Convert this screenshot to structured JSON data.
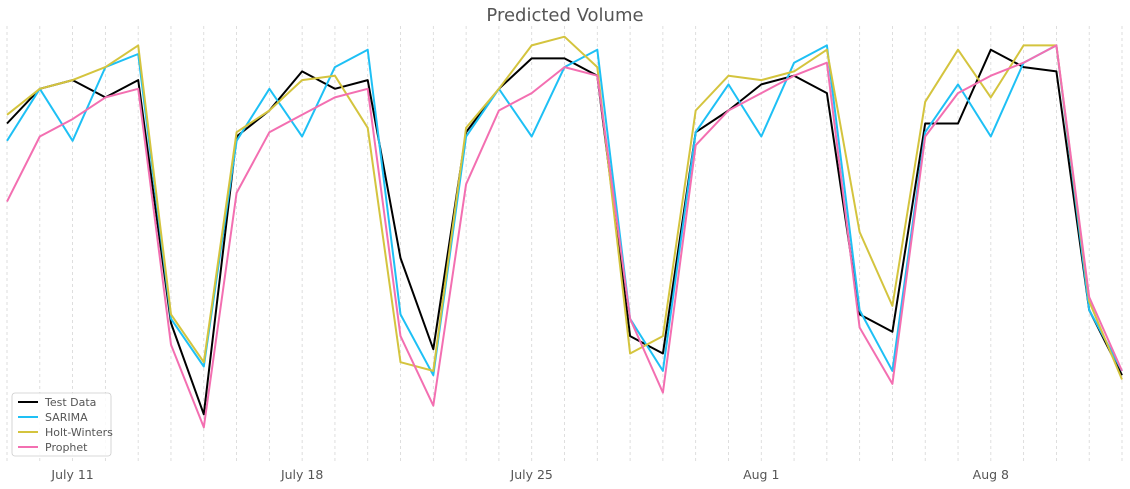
{
  "chart_data": {
    "type": "line",
    "title": "Predicted Volume",
    "xlabel": "",
    "ylabel": "",
    "x": [
      "2021-07-09",
      "2021-07-10",
      "2021-07-11",
      "2021-07-12",
      "2021-07-13",
      "2021-07-14",
      "2021-07-15",
      "2021-07-16",
      "2021-07-17",
      "2021-07-18",
      "2021-07-19",
      "2021-07-20",
      "2021-07-21",
      "2021-07-22",
      "2021-07-23",
      "2021-07-24",
      "2021-07-25",
      "2021-07-26",
      "2021-07-27",
      "2021-07-28",
      "2021-07-29",
      "2021-07-30",
      "2021-07-31",
      "2021-08-01",
      "2021-08-02",
      "2021-08-03",
      "2021-08-04",
      "2021-08-05",
      "2021-08-06",
      "2021-08-07",
      "2021-08-08",
      "2021-08-09",
      "2021-08-10",
      "2021-08-11",
      "2021-08-12"
    ],
    "x_ticks": [
      {
        "date": "2021-07-11",
        "label": "July 11"
      },
      {
        "date": "2021-07-18",
        "label": "July 18"
      },
      {
        "date": "2021-07-25",
        "label": "July 25"
      },
      {
        "date": "2021-08-01",
        "label": "Aug 1"
      },
      {
        "date": "2021-08-08",
        "label": "Aug 8"
      }
    ],
    "ylim": [
      0,
      100
    ],
    "y_ticks_shown": false,
    "grid": "vertical-dashed",
    "legend_position": "bottom-left",
    "series": [
      {
        "name": "Test Data",
        "color": "#000000",
        "values": [
          78,
          86,
          88,
          84,
          88,
          32,
          11,
          75,
          81,
          90,
          86,
          88,
          47,
          26,
          76,
          86,
          93,
          93,
          89,
          29,
          25,
          76,
          81,
          87,
          89,
          85,
          34,
          30,
          78,
          78,
          95,
          91,
          90,
          35,
          20
        ]
      },
      {
        "name": "SARIMA",
        "color": "#1ec0f5",
        "values": [
          74,
          86,
          74,
          91,
          94,
          33,
          22,
          74,
          86,
          75,
          91,
          95,
          34,
          20,
          75,
          86,
          75,
          91,
          95,
          33,
          21,
          76,
          87,
          75,
          92,
          96,
          35,
          21,
          76,
          87,
          75,
          92,
          96,
          35,
          21
        ]
      },
      {
        "name": "Holt-Winters",
        "color": "#d4c43e",
        "values": [
          80,
          86,
          88,
          91,
          96,
          34,
          23,
          76,
          81,
          88,
          89,
          77,
          23,
          21,
          77,
          86,
          96,
          98,
          91,
          25,
          29,
          81,
          89,
          88,
          90,
          95,
          53,
          36,
          83,
          95,
          84,
          96,
          96,
          37,
          19
        ]
      },
      {
        "name": "Prophet",
        "color": "#f36fb1",
        "values": [
          60,
          75,
          79,
          84,
          86,
          27,
          8,
          62,
          76,
          80,
          84,
          86,
          29,
          13,
          64,
          81,
          85,
          91,
          89,
          33,
          16,
          73,
          81,
          85,
          89,
          92,
          31,
          18,
          75,
          85,
          89,
          92,
          96,
          38,
          21
        ]
      }
    ]
  }
}
